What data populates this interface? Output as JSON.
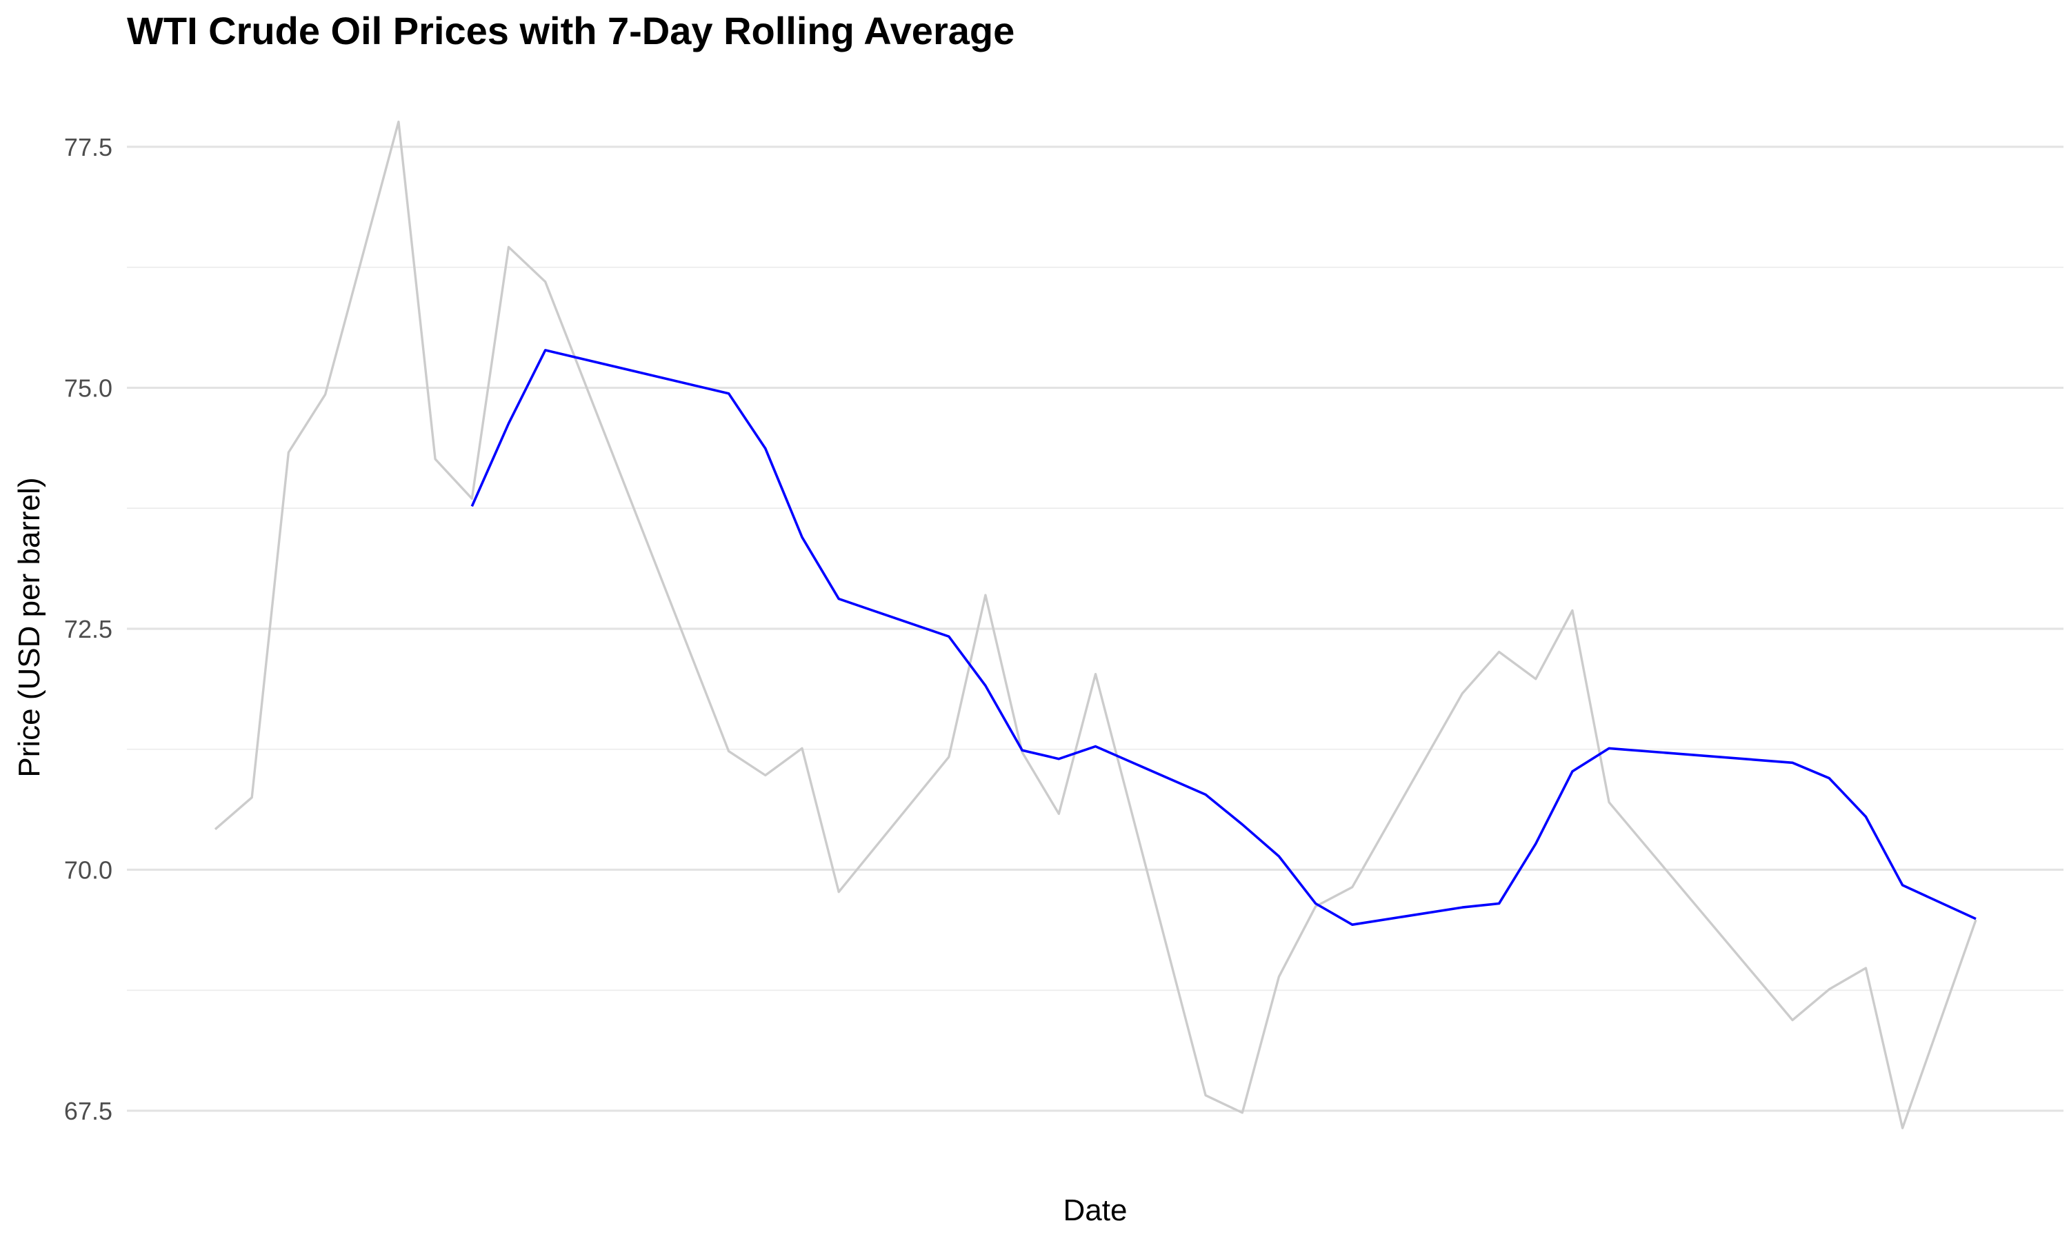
{
  "chart_data": {
    "type": "line",
    "title": "WTI Crude Oil Prices with 7-Day Rolling Average",
    "xlabel": "Date",
    "ylabel": "Price (USD per barrel)",
    "ylim": [
      67.15,
      77.95
    ],
    "yticks": [
      "67.5",
      "70.0",
      "72.5",
      "75.0",
      "77.5"
    ],
    "grid": true,
    "x": [
      1,
      2,
      3,
      4,
      5,
      6,
      7,
      8,
      9,
      10,
      11,
      12,
      13,
      14,
      15,
      16,
      17,
      18,
      19,
      20,
      21,
      22,
      23,
      24,
      25,
      26,
      27,
      28,
      29,
      30,
      31,
      32,
      33,
      34,
      35,
      36,
      37,
      38,
      39,
      40,
      41,
      42,
      43,
      44,
      45,
      46,
      47,
      48,
      49
    ],
    "series": [
      {
        "color": "#cccccc",
        "values": [
          70.42,
          70.75,
          74.33,
          74.93,
          null,
          77.76,
          74.26,
          73.85,
          76.46,
          76.1,
          null,
          null,
          null,
          null,
          71.23,
          70.98,
          71.26,
          69.77,
          null,
          null,
          71.17,
          72.85,
          71.22,
          70.58,
          72.03,
          null,
          null,
          67.66,
          67.48,
          68.89,
          69.62,
          69.82,
          null,
          null,
          71.83,
          72.26,
          71.98,
          72.69,
          70.7,
          null,
          null,
          null,
          null,
          68.44,
          68.76,
          68.98,
          67.32,
          null,
          69.48
        ]
      },
      {
        "color": "#0000ff",
        "values": [
          null,
          null,
          null,
          null,
          null,
          null,
          null,
          73.77,
          74.63,
          75.39,
          null,
          null,
          null,
          null,
          74.94,
          74.37,
          73.45,
          72.81,
          null,
          null,
          72.42,
          71.91,
          71.24,
          71.15,
          71.28,
          null,
          null,
          70.78,
          70.47,
          70.14,
          69.65,
          69.43,
          null,
          null,
          69.61,
          69.65,
          70.27,
          71.02,
          71.26,
          null,
          null,
          null,
          null,
          71.11,
          70.95,
          70.55,
          69.84,
          null,
          69.49
        ]
      }
    ]
  }
}
